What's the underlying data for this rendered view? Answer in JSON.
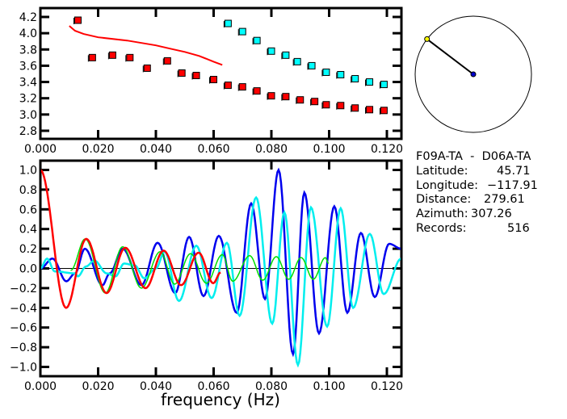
{
  "chart_data": [
    {
      "type": "scatter",
      "title": "",
      "xlabel": "",
      "ylabel": "",
      "xlim": [
        0.0,
        0.125
      ],
      "ylim": [
        2.7,
        4.31
      ],
      "x_ticks": [
        "0.000",
        "0.020",
        "0.040",
        "0.060",
        "0.080",
        "0.100",
        "0.120"
      ],
      "x_tick_values": [
        0,
        0.02,
        0.04,
        0.06,
        0.08,
        0.1,
        0.12
      ],
      "y_ticks": [
        "2.8",
        "3.0",
        "3.2",
        "3.4",
        "3.6",
        "3.8",
        "4.0",
        "4.2"
      ],
      "y_tick_values": [
        2.8,
        3.0,
        3.2,
        3.4,
        3.6,
        3.8,
        4.0,
        4.2
      ],
      "series": [
        {
          "name": "red-measurements",
          "kind": "points",
          "color": "#ff0000",
          "x": [
            0.013,
            0.018,
            0.025,
            0.031,
            0.037,
            0.044,
            0.049,
            0.054,
            0.06,
            0.065,
            0.07,
            0.075,
            0.08,
            0.085,
            0.09,
            0.095,
            0.099,
            0.104,
            0.109,
            0.114,
            0.119
          ],
          "y": [
            4.16,
            3.7,
            3.73,
            3.7,
            3.57,
            3.66,
            3.51,
            3.48,
            3.43,
            3.36,
            3.34,
            3.29,
            3.23,
            3.22,
            3.18,
            3.16,
            3.12,
            3.11,
            3.08,
            3.06,
            3.05
          ]
        },
        {
          "name": "cyan-measurements",
          "kind": "points",
          "color": "#00ffff",
          "x": [
            0.065,
            0.07,
            0.075,
            0.08,
            0.085,
            0.089,
            0.094,
            0.099,
            0.104,
            0.109,
            0.114,
            0.119
          ],
          "y": [
            4.12,
            4.02,
            3.91,
            3.78,
            3.73,
            3.65,
            3.6,
            3.52,
            3.49,
            3.44,
            3.4,
            3.37
          ]
        },
        {
          "name": "red-model-curve",
          "kind": "line",
          "color": "#ff0000",
          "x": [
            0.01,
            0.012,
            0.015,
            0.02,
            0.03,
            0.04,
            0.045,
            0.05,
            0.055,
            0.06,
            0.063
          ],
          "y": [
            4.09,
            4.03,
            3.99,
            3.95,
            3.91,
            3.85,
            3.81,
            3.77,
            3.72,
            3.65,
            3.61
          ]
        }
      ]
    },
    {
      "type": "line",
      "title": "",
      "xlabel": "frequency (Hz)",
      "ylabel": "",
      "xlim": [
        0.0,
        0.125
      ],
      "ylim": [
        -1.1,
        1.1
      ],
      "x_ticks": [
        "0.000",
        "0.020",
        "0.040",
        "0.060",
        "0.080",
        "0.100",
        "0.120"
      ],
      "x_tick_values": [
        0,
        0.02,
        0.04,
        0.06,
        0.08,
        0.1,
        0.12
      ],
      "y_ticks": [
        "1.0",
        "0.8",
        "0.6",
        "0.4",
        "0.2",
        "0.0",
        "−0.2",
        "−0.4",
        "−0.6",
        "−0.8",
        "−1.0"
      ],
      "y_tick_values": [
        1.0,
        0.8,
        0.6,
        0.4,
        0.2,
        0.0,
        -0.2,
        -0.4,
        -0.6,
        -0.8,
        -1.0
      ],
      "zero_line": true,
      "series": [
        {
          "name": "blue",
          "color": "#0000ee",
          "x": [
            0,
            0.0042,
            0.009,
            0.012,
            0.0154,
            0.0215,
            0.024,
            0.0285,
            0.035,
            0.0406,
            0.0467,
            0.0515,
            0.0565,
            0.0618,
            0.068,
            0.073,
            0.0778,
            0.0825,
            0.0875,
            0.0914,
            0.0965,
            0.1018,
            0.1063,
            0.111,
            0.1158,
            0.1208,
            0.125
          ],
          "y": [
            0,
            0.1,
            -0.13,
            -0.05,
            0.2,
            -0.17,
            -0.05,
            0.2,
            -0.17,
            0.26,
            -0.25,
            0.32,
            -0.28,
            0.33,
            -0.45,
            0.66,
            -0.31,
            1.0,
            -0.87,
            0.77,
            -0.66,
            0.63,
            -0.45,
            0.36,
            -0.29,
            0.25,
            0.2
          ]
        },
        {
          "name": "cyan",
          "color": "#00eeee",
          "x": [
            0,
            0.0023,
            0.005,
            0.012,
            0.013,
            0.0158,
            0.0187,
            0.023,
            0.026,
            0.029,
            0.0327,
            0.036,
            0.04,
            0.043,
            0.048,
            0.054,
            0.0593,
            0.0646,
            0.069,
            0.0747,
            0.0803,
            0.0845,
            0.0892,
            0.0937,
            0.0993,
            0.104,
            0.1083,
            0.1141,
            0.1189,
            0.125
          ],
          "y": [
            0,
            0.1,
            -0.03,
            -0.05,
            -0.08,
            0.02,
            0.08,
            -0.05,
            -0.08,
            0.05,
            0.03,
            -0.1,
            0.0,
            0.17,
            -0.33,
            0.23,
            -0.3,
            0.26,
            -0.48,
            0.72,
            -0.56,
            0.57,
            -0.98,
            0.62,
            -0.59,
            0.61,
            -0.4,
            0.35,
            -0.26,
            0.1
          ]
        },
        {
          "name": "green",
          "color": "#00dd00",
          "x": [
            0.0105,
            0.0155,
            0.0225,
            0.0285,
            0.035,
            0.0415,
            0.0465,
            0.052,
            0.0575,
            0.063,
            0.0666,
            0.0725,
            0.077,
            0.0817,
            0.086,
            0.0903,
            0.0945,
            0.0987,
            0.0998
          ],
          "y": [
            -0.02,
            0.3,
            -0.25,
            0.22,
            -0.2,
            0.17,
            -0.16,
            0.15,
            -0.15,
            0.14,
            -0.13,
            0.13,
            -0.12,
            0.12,
            -0.11,
            0.11,
            -0.11,
            0.11,
            0.05
          ]
        },
        {
          "name": "red",
          "color": "#ff0000",
          "x": [
            0,
            0.0089,
            0.0159,
            0.0229,
            0.0294,
            0.0364,
            0.0427,
            0.0487,
            0.0548,
            0.0599,
            0.0624
          ],
          "y": [
            1.0,
            -0.4,
            0.3,
            -0.25,
            0.21,
            -0.2,
            0.18,
            -0.17,
            0.16,
            -0.15,
            -0.04
          ]
        }
      ]
    }
  ],
  "map": {
    "station_color": "#ffff00",
    "center_color": "#0000cc",
    "azimuth_deg": 307.26
  },
  "info": {
    "title": "F09A-TA  -  D06A-TA",
    "latitude_label": "Latitude:",
    "latitude": "45.71",
    "longitude_label": "Longitude:",
    "longitude": "−117.91",
    "distance_label": "Distance:",
    "distance": "279.61",
    "azimuth_label": "Azimuth:",
    "azimuth": "307.26",
    "records_label": "Records:",
    "records": "516"
  }
}
